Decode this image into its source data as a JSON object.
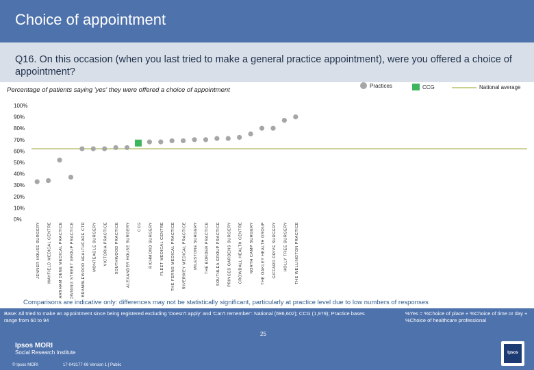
{
  "header": {
    "title": "Choice of appointment",
    "question": "Q16. On this occasion (when you last tried to make a general practice appointment), were you offered a choice of appointment?"
  },
  "legend": {
    "practices": "Practices",
    "ccg": "CCG",
    "national": "National average"
  },
  "colors": {
    "practice_dot": "#a6a6a6",
    "ccg": "#3db55c",
    "national_line": "#c9cf8e",
    "brand_blue": "#4e72ac"
  },
  "chart_data": {
    "type": "scatter",
    "title": "Percentage of patients saying 'yes' they were offered a choice of appointment",
    "ylabel": "",
    "ylim": [
      0,
      100
    ],
    "yticks": [
      "0%",
      "10%",
      "20%",
      "30%",
      "40%",
      "50%",
      "60%",
      "70%",
      "80%",
      "90%",
      "100%"
    ],
    "national_average": 62,
    "categories": [
      "JENNER HOUSE SURGERY",
      "MAYFIELD MEDICAL CENTRE",
      "FARNHAM DENE MEDICAL PRACTICE",
      "DOWNING STREET GROUP PRACTICE",
      "BRAMBLEWOOD HEALTHCARE CTR",
      "MONTEAGLE SURGERY",
      "VICTORIA PRACTICE",
      "SOUTHWOOD PRACTICE",
      "ALEXANDER HOUSE SURGERY",
      "CCG",
      "RICHMOND SURGERY",
      "FLEET MEDICAL CENTRE",
      "THE FERNS MEDICAL PRACTICE",
      "RIVERWEY MEDICAL PRACTICE",
      "MILESTONE SURGERY",
      "THE BORDER PRACTICE",
      "SOUTHLEA GROUP PRACTICE",
      "PRINCES GARDENS SURGERY",
      "CROWDALL HEALTH CENTRE",
      "NORTH CAMP SURGERY",
      "THE OAKLEY HEALTH GROUP",
      "GIFFARD DRIVE SURGERY",
      "HOLLY TREE SURGERY",
      "THE WELLINGTON PRACTICE"
    ],
    "values": [
      33,
      34,
      52,
      37,
      62,
      62,
      62,
      63,
      63,
      67,
      68,
      68,
      69,
      69,
      70,
      70,
      71,
      71,
      72,
      75,
      80,
      80,
      87,
      90
    ],
    "highlight_index": 9
  },
  "note": "Comparisons are indicative only: differences may not be statistically significant, particularly at practice level due to low numbers of responses",
  "footer": {
    "base": "Base: All tried to make an appointment since being registered excluding 'Doesn't apply' and 'Can't remember': National (696,602); CCG (1,979); Practice bases range from 60 to 94",
    "yes_def": "%Yes = %Choice of place + %Choice of time or day + %Choice of healthcare professional",
    "page": "25",
    "logo_l1": "Ipsos MORI",
    "logo_l2": "Social Research Institute",
    "copyright": "© Ipsos MORI",
    "ref": "17-043177-06 Version 1 | Public",
    "brand": "Ipsos"
  }
}
